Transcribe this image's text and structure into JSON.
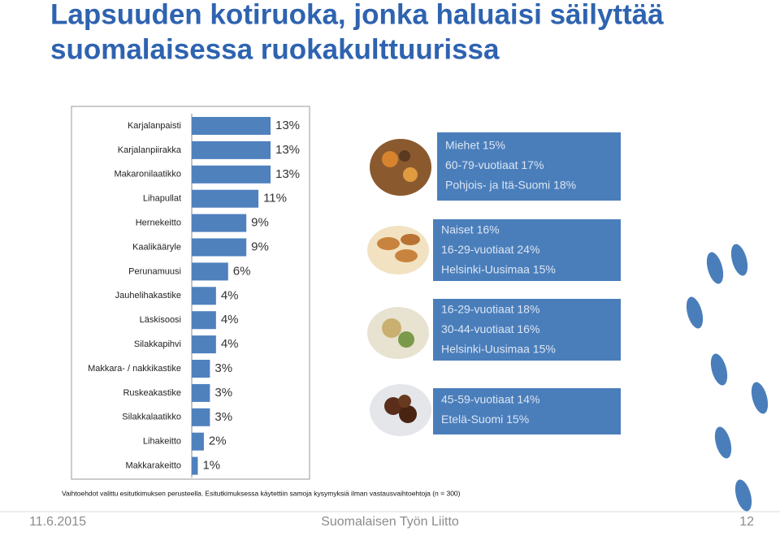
{
  "chart_data": {
    "type": "bar",
    "orientation": "horizontal",
    "title": [
      "Lapsuuden kotiruoka, jonka haluaisi säilyttää",
      "suomalaisessa ruokakulttuurissa"
    ],
    "categories": [
      "Karjalanpaisti",
      "Karjalanpiirakka",
      "Makaronilaatikko",
      "Lihapullat",
      "Hernekeitto",
      "Kaalikääryle",
      "Perunamuusi",
      "Jauhelihakastike",
      "Läskisoosi",
      "Silakkapihvi",
      "Makkara- / nakkikastike",
      "Ruskeakastike",
      "Silakkalaatikko",
      "Lihakeitto",
      "Makkarakeitto"
    ],
    "values": [
      13,
      13,
      13,
      11,
      9,
      9,
      6,
      4,
      4,
      4,
      3,
      3,
      3,
      2,
      1
    ],
    "value_labels": [
      "13%",
      "13%",
      "13%",
      "11%",
      "9%",
      "9%",
      "6%",
      "4%",
      "4%",
      "4%",
      "3%",
      "3%",
      "3%",
      "2%",
      "1%"
    ],
    "color": "#4f81bd",
    "xlim": [
      0,
      13
    ],
    "callouts": [
      {
        "lines": [
          "Miehet 15%",
          "60-79-vuotiaat 17%",
          "Pohjois- ja Itä-Suomi 18%"
        ]
      },
      {
        "lines": [
          "Naiset 16%",
          "16-29-vuotiaat 24%",
          "Helsinki-Uusimaa 15%"
        ]
      },
      {
        "lines": [
          "16-29-vuotiaat 18%",
          "30-44-vuotiaat 16%",
          "Helsinki-Uusimaa 15%"
        ]
      },
      {
        "lines": [
          "45-59-vuotiaat 14%",
          "Etelä-Suomi 15%"
        ]
      }
    ],
    "footnote": "Vaihtoehdot valittu esitutkimuksen perusteella. Esitutkimuksessa käytettiin samoja kysymyksiä ilman vastausvaihtoehtoja (n = 300)"
  },
  "footer": {
    "date": "11.6.2015",
    "organization": "Suomalaisen Työn Liitto",
    "page": "12"
  }
}
